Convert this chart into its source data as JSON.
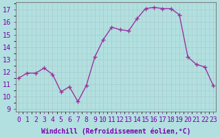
{
  "x": [
    0,
    1,
    2,
    3,
    4,
    5,
    6,
    7,
    8,
    9,
    10,
    11,
    12,
    13,
    14,
    15,
    16,
    17,
    18,
    19,
    20,
    21,
    22,
    23
  ],
  "y": [
    11.5,
    11.9,
    11.9,
    12.3,
    11.8,
    10.4,
    10.8,
    9.6,
    10.9,
    13.2,
    14.6,
    15.6,
    15.4,
    15.3,
    16.3,
    17.1,
    17.2,
    17.1,
    17.1,
    16.6,
    13.2,
    12.6,
    12.4,
    10.9
  ],
  "line_color": "#9b30a0",
  "marker": "D",
  "marker_size": 2.2,
  "bg_color": "#b2e0e0",
  "grid_color": "#aacccc",
  "xlabel": "Windchill (Refroidissement éolien,°C)",
  "xlabel_fontsize": 7,
  "xtick_labels": [
    "0",
    "1",
    "2",
    "3",
    "4",
    "5",
    "6",
    "7",
    "8",
    "9",
    "10",
    "11",
    "12",
    "13",
    "14",
    "15",
    "16",
    "17",
    "18",
    "19",
    "20",
    "21",
    "22",
    "23"
  ],
  "ylim": [
    8.8,
    17.6
  ],
  "yticks": [
    9,
    10,
    11,
    12,
    13,
    14,
    15,
    16,
    17
  ],
  "tick_fontsize": 7,
  "line_width": 1.0,
  "xlim": [
    -0.3,
    23.3
  ]
}
